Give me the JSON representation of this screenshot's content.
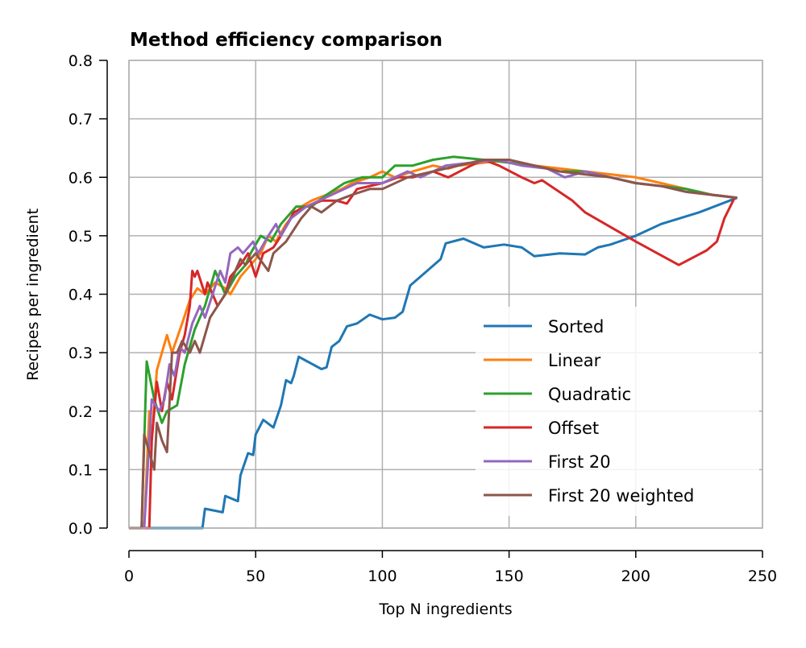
{
  "chart_data": {
    "type": "line",
    "title": "Method efficiency comparison",
    "xlabel": "Top N ingredients",
    "ylabel": "Recipes per ingredient",
    "xlim": [
      0,
      250
    ],
    "ylim": [
      0,
      0.8
    ],
    "xticks": [
      0,
      50,
      100,
      150,
      200,
      250
    ],
    "yticks": [
      0.0,
      0.1,
      0.2,
      0.3,
      0.4,
      0.5,
      0.6,
      0.7,
      0.8
    ],
    "grid": true,
    "legend_position": "lower-right",
    "series": [
      {
        "name": "Sorted",
        "color": "#1f77b4",
        "x": [
          0,
          29,
          30,
          37,
          38,
          43,
          44,
          47,
          49,
          50,
          53,
          57,
          60,
          62,
          64,
          65,
          67,
          76,
          78,
          80,
          83,
          86,
          90,
          95,
          100,
          105,
          108,
          111,
          115,
          123,
          125,
          132,
          140,
          148,
          155,
          160,
          170,
          180,
          185,
          190,
          200,
          210,
          225,
          240
        ],
        "y": [
          0,
          0,
          0.033,
          0.027,
          0.055,
          0.046,
          0.09,
          0.128,
          0.125,
          0.16,
          0.185,
          0.172,
          0.21,
          0.253,
          0.248,
          0.26,
          0.293,
          0.272,
          0.275,
          0.31,
          0.32,
          0.345,
          0.35,
          0.365,
          0.357,
          0.36,
          0.37,
          0.415,
          0.43,
          0.46,
          0.487,
          0.495,
          0.48,
          0.485,
          0.48,
          0.465,
          0.47,
          0.468,
          0.48,
          0.485,
          0.5,
          0.52,
          0.54,
          0.565
        ]
      },
      {
        "name": "Linear",
        "color": "#ff7f0e",
        "x": [
          0,
          6,
          8,
          9,
          11,
          13,
          15,
          17,
          21,
          24,
          27,
          30,
          34,
          38,
          40,
          44,
          48,
          52,
          55,
          58,
          62,
          68,
          72,
          78,
          84,
          88,
          95,
          100,
          105,
          112,
          120,
          126,
          130,
          140,
          150,
          160,
          170,
          180,
          190,
          200,
          210,
          220,
          230,
          240
        ],
        "y": [
          0,
          0,
          0.2,
          0.15,
          0.27,
          0.3,
          0.33,
          0.3,
          0.35,
          0.39,
          0.41,
          0.4,
          0.42,
          0.41,
          0.4,
          0.43,
          0.45,
          0.47,
          0.5,
          0.49,
          0.52,
          0.55,
          0.56,
          0.57,
          0.58,
          0.59,
          0.6,
          0.61,
          0.6,
          0.61,
          0.62,
          0.615,
          0.62,
          0.625,
          0.63,
          0.62,
          0.615,
          0.61,
          0.605,
          0.6,
          0.59,
          0.58,
          0.57,
          0.565
        ]
      },
      {
        "name": "Quadratic",
        "color": "#2ca02c",
        "x": [
          0,
          5,
          7,
          10,
          13,
          15,
          19,
          22,
          26,
          30,
          34,
          38,
          42,
          46,
          48,
          52,
          56,
          60,
          66,
          72,
          78,
          85,
          92,
          100,
          105,
          112,
          120,
          128,
          140,
          150,
          160,
          170,
          180,
          190,
          200,
          210,
          220,
          230,
          240
        ],
        "y": [
          0,
          0,
          0.285,
          0.22,
          0.18,
          0.2,
          0.21,
          0.28,
          0.34,
          0.38,
          0.44,
          0.4,
          0.43,
          0.45,
          0.47,
          0.5,
          0.49,
          0.52,
          0.55,
          0.55,
          0.57,
          0.59,
          0.6,
          0.6,
          0.62,
          0.62,
          0.63,
          0.635,
          0.63,
          0.625,
          0.62,
          0.61,
          0.61,
          0.6,
          0.59,
          0.585,
          0.58,
          0.57,
          0.565
        ]
      },
      {
        "name": "Offset",
        "color": "#d62728",
        "x": [
          0,
          8,
          9,
          11,
          13,
          15,
          17,
          20,
          22,
          24,
          25,
          26,
          27,
          30,
          31,
          35,
          38,
          40,
          44,
          47,
          50,
          53,
          57,
          60,
          65,
          70,
          76,
          82,
          86,
          90,
          100,
          106,
          112,
          120,
          126,
          135,
          140,
          146,
          155,
          160,
          163,
          175,
          180,
          200,
          217,
          228,
          232,
          235,
          239
        ],
        "y": [
          0,
          0,
          0.15,
          0.25,
          0.2,
          0.25,
          0.22,
          0.3,
          0.33,
          0.38,
          0.44,
          0.43,
          0.44,
          0.4,
          0.42,
          0.38,
          0.4,
          0.43,
          0.45,
          0.47,
          0.43,
          0.47,
          0.48,
          0.5,
          0.54,
          0.55,
          0.56,
          0.56,
          0.555,
          0.58,
          0.59,
          0.6,
          0.6,
          0.61,
          0.6,
          0.62,
          0.63,
          0.62,
          0.6,
          0.59,
          0.595,
          0.56,
          0.54,
          0.49,
          0.45,
          0.475,
          0.49,
          0.53,
          0.565
        ]
      },
      {
        "name": "First 20",
        "color": "#9467bd",
        "x": [
          0,
          6,
          9,
          12,
          14,
          16,
          18,
          20,
          22,
          25,
          28,
          30,
          33,
          36,
          38,
          40,
          43,
          45,
          49,
          51,
          55,
          58,
          60,
          64,
          70,
          75,
          80,
          90,
          100,
          110,
          115,
          125,
          135,
          145,
          155,
          165,
          172,
          180,
          190,
          200,
          210,
          220,
          230,
          240
        ],
        "y": [
          0,
          0,
          0.22,
          0.2,
          0.22,
          0.28,
          0.26,
          0.31,
          0.3,
          0.35,
          0.38,
          0.36,
          0.4,
          0.44,
          0.42,
          0.47,
          0.48,
          0.47,
          0.49,
          0.47,
          0.5,
          0.52,
          0.5,
          0.53,
          0.55,
          0.56,
          0.57,
          0.59,
          0.59,
          0.61,
          0.6,
          0.62,
          0.625,
          0.63,
          0.62,
          0.615,
          0.6,
          0.61,
          0.6,
          0.59,
          0.585,
          0.575,
          0.57,
          0.565
        ]
      },
      {
        "name": "First 20 weighted",
        "color": "#8c564b",
        "x": [
          0,
          5,
          6,
          8,
          10,
          11,
          13,
          15,
          17,
          19,
          21,
          24,
          26,
          28,
          32,
          35,
          38,
          40,
          44,
          46,
          50,
          55,
          57,
          62,
          68,
          72,
          76,
          82,
          88,
          95,
          100,
          110,
          120,
          130,
          140,
          150,
          160,
          170,
          180,
          190,
          200,
          210,
          220,
          230,
          240
        ],
        "y": [
          0,
          0,
          0.16,
          0.13,
          0.1,
          0.18,
          0.15,
          0.13,
          0.3,
          0.3,
          0.32,
          0.3,
          0.32,
          0.3,
          0.36,
          0.38,
          0.4,
          0.42,
          0.46,
          0.45,
          0.47,
          0.44,
          0.47,
          0.49,
          0.53,
          0.55,
          0.54,
          0.56,
          0.57,
          0.58,
          0.58,
          0.6,
          0.61,
          0.62,
          0.63,
          0.63,
          0.62,
          0.61,
          0.605,
          0.6,
          0.59,
          0.585,
          0.575,
          0.57,
          0.565
        ]
      }
    ]
  }
}
